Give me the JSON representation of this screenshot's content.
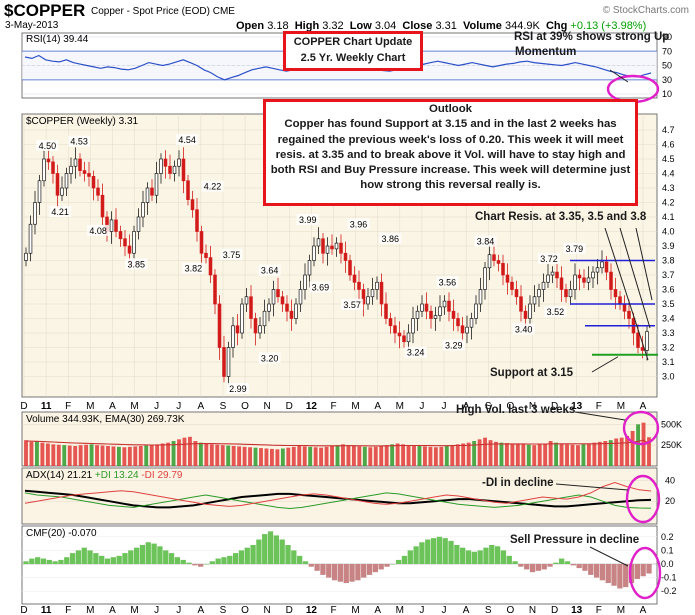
{
  "header": {
    "ticker": "$COPPER",
    "name": "Copper - Spot Price (EOD)",
    "exchange": "CME",
    "date": "3-May-2013",
    "open_label": "Open",
    "open": "3.18",
    "high_label": "High",
    "high": "3.32",
    "low_label": "Low",
    "low": "3.04",
    "close_label": "Close",
    "close": "3.31",
    "volume_label": "Volume",
    "volume": "344.9K",
    "chg_label": "Chg",
    "chg": "+0.13 (+3.98%)",
    "credit": "© StockCharts.com"
  },
  "annotations": {
    "title_box_line1": "COPPER Chart Update",
    "title_box_line2": "2.5 Yr. Weekly Chart",
    "rsi_note_line1": "RSI at 39% shows strong Up",
    "rsi_note_line2": "Momentum",
    "outlook_title": "Outlook",
    "outlook_body": "Copper has found Support at 3.15 and in the last 2 weeks has regained the previous week's loss of 0.20. This week it will meet resis. at 3.35 and to break above it Vol. will have to stay high and both RSI and Buy Pressure increase. This week will determine just how strong this reversal really is.",
    "resistance_note": "Chart Resis. at 3.35, 3.5 and 3.8",
    "support_note": "Support at 3.15",
    "volume_note": "High Vol. last 3 weeks",
    "adx_note": "-DI in decline",
    "cmf_note": "Sell Pressure in decline"
  },
  "colors": {
    "up": "#2e7d32",
    "down": "#d21a1a",
    "accent_red": "#e8141c",
    "magenta": "#e020c8",
    "rsi_line": "#2d50c8",
    "hline_blue": "#2020d8",
    "support_green": "#20a020",
    "panel_bg": "#fbf4e4",
    "volume_bar": "#e03a3a",
    "ema_line": "#c83232",
    "cmf_pos": "#6cc35a",
    "cmf_neg": "#c88484",
    "pdi": "#2a9a2a",
    "mdi": "#e04040",
    "adx": "#000000"
  },
  "chart_data": [
    {
      "type": "line",
      "panel": "rsi",
      "label": "RSI(14) 39.44",
      "ylim": [
        10,
        90
      ],
      "ticks": [
        "90",
        "70",
        "50",
        "30",
        "10"
      ],
      "reference_lines": [
        70,
        50,
        30
      ],
      "values": [
        62,
        60,
        64,
        58,
        56,
        55,
        58,
        54,
        52,
        50,
        48,
        46,
        48,
        47,
        45,
        44,
        46,
        50,
        54,
        52,
        50,
        52,
        55,
        58,
        54,
        50,
        44,
        40,
        34,
        30,
        33,
        36,
        40,
        44,
        46,
        48,
        46,
        44,
        42,
        44,
        50,
        54,
        56,
        58,
        60,
        58,
        56,
        54,
        52,
        50,
        48,
        45,
        43,
        42,
        44,
        46,
        48,
        50,
        52,
        54,
        56,
        54,
        52,
        50,
        52,
        54,
        52,
        50,
        48,
        50,
        52,
        53,
        55,
        56,
        54,
        53,
        52,
        51,
        50,
        52,
        54,
        52,
        50,
        48,
        45,
        42,
        40,
        37,
        35,
        34,
        37,
        39.44
      ]
    },
    {
      "type": "candlestick",
      "panel": "price",
      "label": "$COPPER (Weekly) 3.31",
      "ylim": [
        2.9,
        4.7
      ],
      "ticks": [
        "4.7",
        "4.6",
        "4.5",
        "4.4",
        "4.3",
        "4.2",
        "4.1",
        "4.0",
        "3.9",
        "3.8",
        "3.7",
        "3.6",
        "3.5",
        "3.4",
        "3.3",
        "3.2",
        "3.1",
        "3.0"
      ],
      "x_labels": [
        "D",
        "11",
        "F",
        "M",
        "A",
        "M",
        "J",
        "J",
        "A",
        "S",
        "O",
        "N",
        "D",
        "12",
        "F",
        "M",
        "A",
        "M",
        "J",
        "J",
        "A",
        "S",
        "O",
        "N",
        "D",
        "13",
        "F",
        "M",
        "A"
      ],
      "close": [
        3.85,
        4.05,
        4.2,
        4.35,
        4.5,
        4.48,
        4.4,
        4.25,
        4.3,
        4.4,
        4.45,
        4.5,
        4.42,
        4.4,
        4.38,
        4.3,
        4.25,
        4.1,
        4.0,
        4.08,
        4.0,
        3.95,
        3.9,
        3.85,
        4.0,
        4.1,
        4.2,
        4.3,
        4.25,
        4.4,
        4.5,
        4.45,
        4.4,
        4.45,
        4.5,
        4.35,
        4.22,
        4.15,
        4.0,
        3.85,
        3.82,
        3.7,
        3.5,
        3.2,
        3.0,
        3.2,
        3.35,
        3.3,
        3.5,
        3.55,
        3.4,
        3.3,
        3.35,
        3.45,
        3.5,
        3.6,
        3.55,
        3.5,
        3.45,
        3.4,
        3.5,
        3.6,
        3.7,
        3.8,
        3.9,
        3.95,
        3.85,
        3.9,
        3.88,
        3.92,
        3.85,
        3.8,
        3.7,
        3.65,
        3.6,
        3.5,
        3.55,
        3.6,
        3.65,
        3.5,
        3.4,
        3.35,
        3.3,
        3.28,
        3.24,
        3.3,
        3.4,
        3.45,
        3.5,
        3.45,
        3.4,
        3.42,
        3.48,
        3.52,
        3.45,
        3.4,
        3.35,
        3.3,
        3.34,
        3.4,
        3.5,
        3.6,
        3.75,
        3.84,
        3.8,
        3.78,
        3.7,
        3.65,
        3.6,
        3.55,
        3.45,
        3.4,
        3.5,
        3.55,
        3.6,
        3.65,
        3.7,
        3.72,
        3.68,
        3.6,
        3.55,
        3.6,
        3.7,
        3.68,
        3.65,
        3.68,
        3.72,
        3.75,
        3.79,
        3.72,
        3.6,
        3.55,
        3.5,
        3.45,
        3.4,
        3.3,
        3.2,
        3.18,
        3.31
      ],
      "data_labels": [
        {
          "text": "4.50",
          "value": 4.5,
          "pos": "above"
        },
        {
          "text": "4.21",
          "value": 4.21,
          "pos": "below"
        },
        {
          "text": "4.53",
          "value": 4.53,
          "pos": "above"
        },
        {
          "text": "4.08",
          "value": 4.08,
          "pos": "below"
        },
        {
          "text": "3.85",
          "value": 3.85,
          "pos": "below"
        },
        {
          "text": "4.54",
          "value": 4.54,
          "pos": "above"
        },
        {
          "text": "4.22",
          "value": 4.22,
          "pos": "above"
        },
        {
          "text": "3.82",
          "value": 3.82,
          "pos": "below"
        },
        {
          "text": "3.75",
          "value": 3.75,
          "pos": "above"
        },
        {
          "text": "2.99",
          "value": 2.99,
          "pos": "below"
        },
        {
          "text": "3.64",
          "value": 3.64,
          "pos": "above"
        },
        {
          "text": "3.20",
          "value": 3.2,
          "pos": "below"
        },
        {
          "text": "3.99",
          "value": 3.99,
          "pos": "above"
        },
        {
          "text": "3.69",
          "value": 3.69,
          "pos": "below"
        },
        {
          "text": "3.96",
          "value": 3.96,
          "pos": "above"
        },
        {
          "text": "3.86",
          "value": 3.86,
          "pos": "above"
        },
        {
          "text": "3.57",
          "value": 3.57,
          "pos": "below"
        },
        {
          "text": "3.24",
          "value": 3.24,
          "pos": "below"
        },
        {
          "text": "3.56",
          "value": 3.56,
          "pos": "above"
        },
        {
          "text": "3.29",
          "value": 3.29,
          "pos": "below"
        },
        {
          "text": "3.84",
          "value": 3.84,
          "pos": "above"
        },
        {
          "text": "3.40",
          "value": 3.4,
          "pos": "below"
        },
        {
          "text": "3.72",
          "value": 3.72,
          "pos": "above"
        },
        {
          "text": "3.52",
          "value": 3.52,
          "pos": "below"
        },
        {
          "text": "3.79",
          "value": 3.79,
          "pos": "above"
        }
      ],
      "resistance_levels": [
        3.8,
        3.5,
        3.35
      ],
      "support_level": 3.15
    },
    {
      "type": "bar",
      "panel": "volume",
      "label": "Volume 344.93K, EMA(30) 269.73K",
      "ylim": [
        0,
        600
      ],
      "ticks": [
        "500K",
        "250K"
      ],
      "values": [
        310,
        290,
        300,
        280,
        270,
        260,
        255,
        250,
        245,
        240,
        250,
        255,
        260,
        250,
        245,
        240,
        235,
        230,
        225,
        230,
        235,
        240,
        245,
        250,
        260,
        270,
        280,
        300,
        320,
        340,
        350,
        300,
        280,
        270,
        260,
        255,
        250,
        245,
        240,
        235,
        230,
        225,
        220,
        215,
        210,
        205,
        200,
        210,
        220,
        230,
        240,
        235,
        230,
        225,
        220,
        230,
        240,
        250,
        260,
        250,
        240,
        235,
        230,
        225,
        230,
        240,
        250,
        260,
        270,
        260,
        250,
        245,
        240,
        235,
        230,
        225,
        230,
        240,
        250,
        260,
        270,
        280,
        300,
        320,
        340,
        310,
        290,
        280,
        275,
        270,
        265,
        260,
        255,
        250,
        260,
        270,
        300,
        280,
        270,
        260,
        255,
        250,
        260,
        270,
        280,
        290,
        300,
        310,
        330,
        340,
        360,
        420,
        500,
        520,
        345
      ],
      "ema": [
        300,
        298,
        296,
        294,
        291,
        288,
        285,
        282,
        279,
        276,
        274,
        272,
        270,
        268,
        266,
        264,
        262,
        260,
        258,
        256,
        255,
        254,
        253,
        252,
        252,
        253,
        254,
        256,
        259,
        262,
        266,
        268,
        269,
        269,
        269,
        268,
        267,
        266,
        265,
        263,
        261,
        259,
        257,
        255,
        253,
        250,
        248,
        247,
        246,
        246,
        246,
        245,
        244,
        243,
        242,
        242,
        242,
        243,
        244,
        244,
        244,
        243,
        242,
        241,
        241,
        241,
        242,
        243,
        245,
        246,
        246,
        246,
        246,
        245,
        245,
        244,
        244,
        244,
        245,
        246,
        247,
        249,
        252,
        256,
        261,
        263,
        264,
        265,
        265,
        265,
        265,
        265,
        264,
        264,
        264,
        264,
        266,
        267,
        267,
        267,
        266,
        266,
        266,
        266,
        267,
        268,
        269,
        271,
        273,
        275,
        278,
        285,
        296,
        310,
        270
      ]
    },
    {
      "type": "line",
      "panel": "adx",
      "label": "ADX(14) 21.21 +DI 13.24 -DI 29.79",
      "ylim": [
        0,
        50
      ],
      "ticks": [
        "40",
        "20"
      ],
      "series": [
        {
          "name": "ADX(14)",
          "values": [
            30,
            29,
            28,
            27,
            26,
            24,
            22,
            20,
            18,
            16,
            15,
            14,
            14,
            15,
            16,
            18,
            20,
            22,
            24,
            25,
            26,
            27,
            27,
            26,
            25,
            24,
            23,
            22,
            21,
            20,
            19,
            18,
            18,
            19,
            20,
            21,
            22,
            22,
            21,
            20,
            19,
            18,
            17,
            16,
            15,
            15,
            16,
            17,
            18,
            19,
            20,
            21,
            21.21
          ]
        },
        {
          "name": "+DI",
          "values": [
            28,
            26,
            25,
            24,
            22,
            20,
            18,
            16,
            15,
            14,
            16,
            18,
            20,
            22,
            24,
            26,
            24,
            22,
            20,
            18,
            16,
            14,
            13,
            14,
            16,
            18,
            20,
            22,
            24,
            26,
            28,
            27,
            25,
            23,
            21,
            19,
            17,
            16,
            15,
            14,
            15,
            16,
            18,
            20,
            22,
            24,
            26,
            24,
            20,
            16,
            14,
            13.5,
            13.24
          ]
        },
        {
          "name": "-DI",
          "values": [
            18,
            20,
            22,
            24,
            26,
            27,
            28,
            29,
            30,
            29,
            27,
            25,
            23,
            21,
            19,
            17,
            16,
            15,
            16,
            18,
            20,
            22,
            24,
            26,
            27,
            26,
            24,
            22,
            20,
            18,
            17,
            18,
            20,
            22,
            24,
            26,
            25,
            23,
            21,
            19,
            18,
            20,
            22,
            24,
            23,
            22,
            24,
            28,
            34,
            38,
            34,
            31,
            29.79
          ]
        }
      ]
    },
    {
      "type": "bar",
      "panel": "cmf",
      "label": "CMF(20) -0.070",
      "ylim": [
        -0.25,
        0.25
      ],
      "ticks": [
        "0.2",
        "0.1",
        "0.0",
        "-0.1",
        "-0.2"
      ],
      "values": [
        0.02,
        0.04,
        0.05,
        0.04,
        0.03,
        0.02,
        0.03,
        0.05,
        0.08,
        0.1,
        0.12,
        0.1,
        0.08,
        0.06,
        0.04,
        0.05,
        0.06,
        0.08,
        0.1,
        0.12,
        0.14,
        0.16,
        0.15,
        0.13,
        0.1,
        0.08,
        0.05,
        0.03,
        0.01,
        -0.01,
        -0.02,
        0.0,
        0.02,
        0.04,
        0.05,
        0.06,
        0.08,
        0.1,
        0.12,
        0.14,
        0.18,
        0.22,
        0.24,
        0.21,
        0.18,
        0.14,
        0.1,
        0.06,
        0.02,
        -0.02,
        -0.05,
        -0.08,
        -0.1,
        -0.12,
        -0.13,
        -0.14,
        -0.13,
        -0.12,
        -0.1,
        -0.08,
        -0.06,
        -0.04,
        -0.02,
        0.0,
        0.03,
        0.06,
        0.1,
        0.13,
        0.16,
        0.18,
        0.19,
        0.2,
        0.19,
        0.17,
        0.14,
        0.12,
        0.1,
        0.09,
        0.1,
        0.12,
        0.14,
        0.13,
        0.1,
        0.06,
        0.02,
        -0.02,
        -0.04,
        -0.06,
        -0.05,
        -0.04,
        -0.02,
        0.01,
        0.04,
        0.02,
        -0.01,
        -0.03,
        -0.05,
        -0.08,
        -0.1,
        -0.12,
        -0.14,
        -0.16,
        -0.18,
        -0.17,
        -0.14,
        -0.11,
        -0.09,
        -0.07
      ],
      "x_labels": [
        "D",
        "11",
        "F",
        "M",
        "A",
        "M",
        "J",
        "J",
        "A",
        "S",
        "O",
        "N",
        "D",
        "12",
        "F",
        "M",
        "A",
        "M",
        "J",
        "J",
        "A",
        "S",
        "O",
        "N",
        "D",
        "13",
        "F",
        "M",
        "A"
      ]
    }
  ]
}
